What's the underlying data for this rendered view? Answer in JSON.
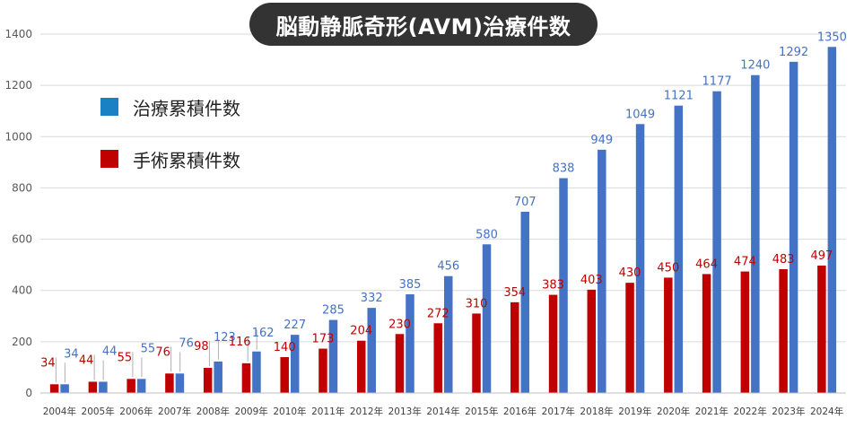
{
  "chart_data": {
    "type": "bar",
    "title": "脳動静脈奇形(AVM)治療件数",
    "categories": [
      "2004年",
      "2005年",
      "2006年",
      "2007年",
      "2008年",
      "2009年",
      "2010年",
      "2011年",
      "2012年",
      "2013年",
      "2014年",
      "2015年",
      "2016年",
      "2017年",
      "2018年",
      "2019年",
      "2020年",
      "2021年",
      "2022年",
      "2023年",
      "2024年"
    ],
    "series": [
      {
        "name": "手術累積件数",
        "color": "#c00000",
        "values": [
          34,
          44,
          55,
          76,
          98,
          116,
          140,
          173,
          204,
          230,
          272,
          310,
          354,
          383,
          403,
          430,
          450,
          464,
          474,
          483,
          497
        ]
      },
      {
        "name": "治療累積件数",
        "color": "#4472c4",
        "values": [
          34,
          44,
          55,
          76,
          123,
          162,
          227,
          285,
          332,
          385,
          456,
          580,
          707,
          838,
          949,
          1049,
          1121,
          1177,
          1240,
          1292,
          1350
        ]
      }
    ],
    "ylim": [
      0,
      1400
    ],
    "yticks": [
      0,
      200,
      400,
      600,
      800,
      1000,
      1200,
      1400
    ],
    "grid": true,
    "legend": "top-left",
    "legend_items": [
      {
        "label": "治療累積件数",
        "color": "#1a82c4"
      },
      {
        "label": "手術累積件数",
        "color": "#c00000"
      }
    ]
  }
}
